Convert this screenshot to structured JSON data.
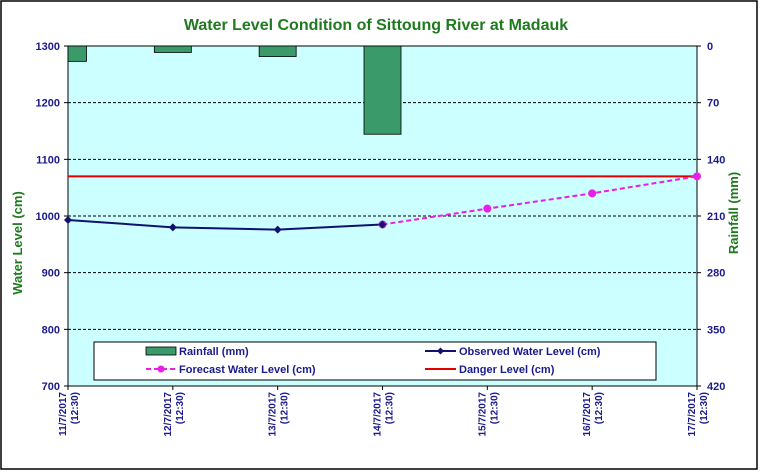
{
  "chart_data": {
    "type": "line",
    "title": "Water Level Condition of Sittoung River at  Madauk",
    "ylabel": "Water  Level (cm)",
    "y2label": "Rainfall (mm)",
    "ylim": [
      700,
      1300
    ],
    "yticks": [
      700,
      800,
      900,
      1000,
      1100,
      1200,
      1300
    ],
    "y2lim": [
      420,
      0
    ],
    "y2ticks": [
      0,
      70,
      140,
      210,
      280,
      350,
      420
    ],
    "categories": [
      {
        "date": "11/7/2017",
        "time": "(12:30)"
      },
      {
        "date": "12/7/2017",
        "time": "(12:30)"
      },
      {
        "date": "13/7/2017",
        "time": "(12:30)"
      },
      {
        "date": "14/7/2017",
        "time": "(12:30)"
      },
      {
        "date": "15/7/2017",
        "time": "(12:30)"
      },
      {
        "date": "16/7/2017",
        "time": "(12:30)"
      },
      {
        "date": "17/7/2017",
        "time": "(12:30)"
      }
    ],
    "rainfall": {
      "name": "Rainfall (mm)",
      "color": "#3a9a6a",
      "values": [
        19,
        8,
        13,
        109
      ]
    },
    "observed": {
      "name": "Observed Water Level (cm)",
      "color": "#12126e",
      "values": [
        993,
        980,
        976,
        985
      ]
    },
    "forecast": {
      "name": "Forecast Water Level (cm)",
      "color": "#e81fe8",
      "start_index": 3,
      "values": [
        985,
        1013,
        1040,
        1070
      ]
    },
    "danger": {
      "name": "Danger Level (cm)",
      "color": "#e00000",
      "value": 1070
    },
    "legend_position": "bottom"
  }
}
